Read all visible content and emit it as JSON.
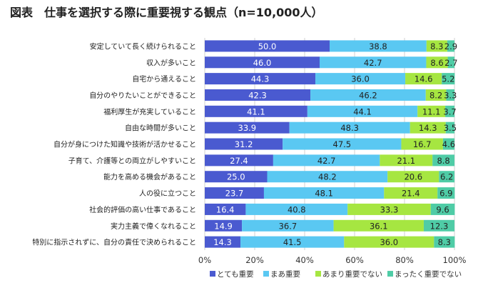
{
  "chart_data": {
    "type": "bar",
    "orientation": "horizontal",
    "stacked": true,
    "title": "図表　仕事を選択する際に重要視する観点（n=10,000人）",
    "categories": [
      "安定していて長く続けられること",
      "収入が多いこと",
      "自宅から通えること",
      "自分のやりたいことができること",
      "福利厚生が充実していること",
      "自由な時間が多いこと",
      "自分が身につけた知識や技術が活かせること",
      "子育て、介護等との両立がしやすいこと",
      "能力を高める機会があること",
      "人の役に立つこと",
      "社会的評価の高い仕事であること",
      "実力主義で偉くなれること",
      "特別に指示されずに、自分の責任で決められること"
    ],
    "series": [
      {
        "name": "とても重要",
        "color": "#4a5ad0",
        "values": [
          50.0,
          46.0,
          44.3,
          42.3,
          41.1,
          33.9,
          31.2,
          27.4,
          25.0,
          23.7,
          16.4,
          14.9,
          14.3
        ]
      },
      {
        "name": "まあ重要",
        "color": "#5ac8f2",
        "values": [
          38.8,
          42.7,
          36.0,
          46.2,
          44.1,
          48.3,
          47.5,
          42.7,
          48.2,
          48.1,
          40.8,
          36.7,
          41.5
        ]
      },
      {
        "name": "あまり重要でない",
        "color": "#a6e641",
        "values": [
          8.3,
          8.6,
          14.6,
          8.2,
          11.1,
          14.3,
          16.7,
          21.1,
          20.6,
          21.4,
          33.3,
          36.1,
          36.0
        ]
      },
      {
        "name": "まったく重要でない",
        "color": "#4fcca6",
        "values": [
          2.9,
          2.7,
          5.2,
          3.3,
          3.7,
          3.5,
          4.6,
          8.8,
          6.2,
          6.9,
          9.6,
          12.3,
          8.3
        ]
      }
    ],
    "xlim": [
      0,
      100
    ],
    "xticks": [
      "0%",
      "20%",
      "40%",
      "60%",
      "80%",
      "100%"
    ],
    "grid": true,
    "legend": "bottom"
  }
}
